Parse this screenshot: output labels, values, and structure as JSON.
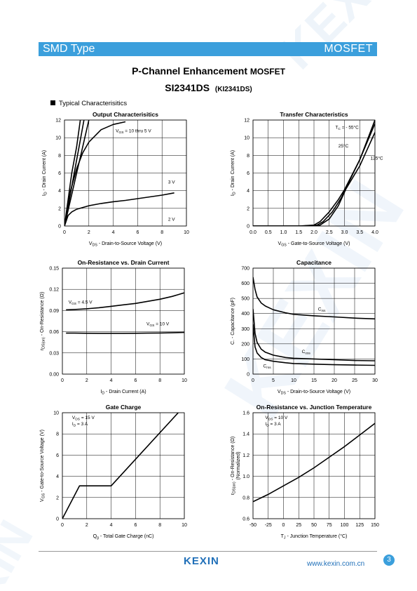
{
  "header": {
    "left": "SMD Type",
    "right": "MOSFET"
  },
  "title": {
    "main": "P-Channel Enhancement ",
    "suffix": "MOSFET",
    "part": "SI2341DS",
    "alt": "(KI2341DS)"
  },
  "section_label": "Typical  Characterisitics",
  "footer": {
    "logo": "KEXIN",
    "url": "www.kexin.com.cn",
    "page": "3"
  },
  "colors": {
    "accent": "#3b9fdc",
    "logo": "#1f6fb8"
  },
  "chart_data": [
    {
      "id": "c1",
      "type": "line",
      "title": "Output Characterisitics",
      "xlabel": [
        "V",
        "DS",
        " -  Drain-to-Source Voltage (V)"
      ],
      "ylabel": [
        "I",
        "D",
        " -  Drain Current (A)"
      ],
      "xlim": [
        0,
        10
      ],
      "ylim": [
        0,
        12
      ],
      "xticks": [
        "0",
        "2",
        "4",
        "6",
        "8",
        "10"
      ],
      "yticks": [
        "0",
        "2",
        "4",
        "6",
        "8",
        "10",
        "12"
      ],
      "series": [
        {
          "x": [
            0,
            0.3,
            0.6,
            1,
            1.3
          ],
          "y": [
            0,
            3,
            6,
            9,
            12
          ]
        },
        {
          "x": [
            0,
            0.4,
            0.8,
            1.2,
            1.6
          ],
          "y": [
            0,
            3,
            6,
            9,
            12
          ]
        },
        {
          "x": [
            0,
            0.5,
            1,
            1.5,
            2
          ],
          "y": [
            0,
            3,
            6,
            9,
            12
          ]
        },
        {
          "x": [
            0,
            0.5,
            1,
            1.5,
            2,
            3,
            4,
            5
          ],
          "y": [
            0,
            4,
            6.5,
            8.3,
            9.5,
            10.9,
            11.5,
            11.8
          ]
        },
        {
          "x": [
            0,
            0.3,
            0.6,
            1,
            1.5,
            2,
            3,
            4,
            5,
            6,
            7,
            8,
            9
          ],
          "y": [
            0,
            1.2,
            1.6,
            1.9,
            2.1,
            2.3,
            2.55,
            2.75,
            2.9,
            3.1,
            3.3,
            3.5,
            3.75
          ]
        }
      ],
      "labels": [
        {
          "text": "V",
          "sub": "GS",
          "rest": " = 10 thru 5 V",
          "x": 4.2,
          "y": 10.6
        },
        {
          "text": "3 V",
          "x": 8.5,
          "y": 4.8
        },
        {
          "text": "2 V",
          "x": 8.5,
          "y": 0.6
        }
      ]
    },
    {
      "id": "c2",
      "type": "line",
      "title": "Transfer Characteristics",
      "xlabel": [
        "V",
        "GS",
        " -  Gate-to-Source Voltage (V)"
      ],
      "ylabel": [
        "I",
        "D",
        " -  Drain Current (A)"
      ],
      "xlim": [
        0,
        4
      ],
      "ylim": [
        0,
        12
      ],
      "xticks": [
        "0.0",
        "0.5",
        "1.0",
        "1.5",
        "2.0",
        "2.5",
        "3.0",
        "3.5",
        "4.0"
      ],
      "yticks": [
        "0",
        "2",
        "4",
        "6",
        "8",
        "10",
        "12"
      ],
      "series": [
        {
          "x": [
            0,
            1.5,
            2,
            2.2,
            2.5,
            2.8,
            3,
            3.5,
            4
          ],
          "y": [
            0,
            0,
            0.1,
            0.5,
            1.6,
            3,
            4.1,
            7.5,
            12
          ]
        },
        {
          "x": [
            0,
            1.6,
            2.1,
            2.3,
            2.6,
            2.9,
            3.05,
            3.5,
            4
          ],
          "y": [
            0,
            0,
            0.1,
            0.5,
            1.6,
            3.2,
            4.3,
            7.5,
            11.6
          ]
        },
        {
          "x": [
            0,
            1.7,
            2.2,
            2.5,
            2.8,
            3.05,
            3.5,
            4
          ],
          "y": [
            0,
            0,
            0.1,
            0.8,
            2.3,
            4.2,
            6.8,
            10.6
          ]
        }
      ],
      "labels": [
        {
          "text": "T",
          "sub": "C",
          "rest": " = - 55°C",
          "x": 2.7,
          "y": 11
        },
        {
          "text": "25°C",
          "x": 2.8,
          "y": 8.9
        },
        {
          "text": "125°C",
          "x": 3.85,
          "y": 7.5
        }
      ]
    },
    {
      "id": "c3",
      "type": "line",
      "title": "On-Resistance vs. Drain Current",
      "xlabel": [
        "I",
        "D",
        " -  Drain Current (A)"
      ],
      "ylabel": [
        "r",
        "DS(on)",
        " -  On-Resistance (Ω)"
      ],
      "xlim": [
        0,
        10
      ],
      "ylim": [
        0,
        0.15
      ],
      "xticks": [
        "0",
        "2",
        "4",
        "6",
        "8",
        "10"
      ],
      "yticks": [
        "0.00",
        "0.03",
        "0.06",
        "0.09",
        "0.12",
        "0.15"
      ],
      "series": [
        {
          "x": [
            0.3,
            1,
            2,
            3,
            4,
            5,
            6,
            7,
            8,
            9,
            10
          ],
          "y": [
            0.091,
            0.0915,
            0.0925,
            0.094,
            0.096,
            0.098,
            0.1,
            0.103,
            0.106,
            0.11,
            0.115
          ]
        },
        {
          "x": [
            0.3,
            1,
            2,
            3,
            4,
            5,
            6,
            7,
            8,
            9,
            10
          ],
          "y": [
            0.058,
            0.058,
            0.0578,
            0.0577,
            0.0577,
            0.0577,
            0.0578,
            0.058,
            0.0582,
            0.0585,
            0.059
          ]
        }
      ],
      "labels": [
        {
          "text": "V",
          "sub": "GS",
          "rest": " = 4.5 V",
          "x": 0.5,
          "y": 0.1
        },
        {
          "text": "V",
          "sub": "GS",
          "rest": " = 10 V",
          "x": 6.9,
          "y": 0.069
        }
      ]
    },
    {
      "id": "c4",
      "type": "line",
      "title": "Capacitance",
      "xlabel": [
        "V",
        "DS",
        " -  Drain-to-Source Voltage (V)"
      ],
      "ylabel": [
        "C",
        "",
        ". -  Capacitance (pF)"
      ],
      "xlim": [
        0,
        30
      ],
      "ylim": [
        0,
        700
      ],
      "xticks": [
        "0",
        "5",
        "10",
        "15",
        "20",
        "25",
        "30"
      ],
      "yticks": [
        "0",
        "100",
        "200",
        "300",
        "400",
        "500",
        "600",
        "700"
      ],
      "series": [
        {
          "x": [
            0,
            0.5,
            1,
            2,
            3,
            5,
            8,
            10,
            15,
            20,
            25,
            30
          ],
          "y": [
            640,
            560,
            510,
            470,
            450,
            425,
            405,
            395,
            385,
            378,
            370,
            365
          ]
        },
        {
          "x": [
            0,
            0.5,
            1,
            2,
            3,
            5,
            8,
            10,
            15,
            20,
            25,
            30
          ],
          "y": [
            430,
            270,
            210,
            165,
            145,
            125,
            110,
            105,
            100,
            95,
            90,
            88
          ]
        },
        {
          "x": [
            0,
            0.5,
            1,
            2,
            3,
            5,
            8,
            10,
            15,
            20,
            25,
            30
          ],
          "y": [
            330,
            180,
            140,
            110,
            95,
            85,
            75,
            70,
            66,
            62,
            60,
            58
          ]
        }
      ],
      "labels": [
        {
          "text": "C",
          "sub": "iss",
          "rest": "",
          "x": 16,
          "y": 420
        },
        {
          "text": "C",
          "sub": "oss",
          "rest": "",
          "x": 12,
          "y": 140
        },
        {
          "text": "C",
          "sub": "rss",
          "rest": "",
          "x": 2.5,
          "y": 45
        }
      ]
    },
    {
      "id": "c5",
      "type": "line",
      "title": "Gate Charge",
      "xlabel": [
        "Q",
        "g",
        " -  Total Gate Charge (nC)"
      ],
      "ylabel": [
        "V",
        "GS",
        " -  Gate-to-Source Voltage (V)"
      ],
      "xlim": [
        0,
        10
      ],
      "ylim": [
        0,
        10
      ],
      "xticks": [
        "0",
        "2",
        "4",
        "6",
        "8",
        "10"
      ],
      "yticks": [
        "0",
        "2",
        "4",
        "6",
        "8",
        "10"
      ],
      "series": [
        {
          "x": [
            0,
            1.4,
            4,
            9.5
          ],
          "y": [
            0,
            3.1,
            3.1,
            10
          ]
        }
      ],
      "labels": [
        {
          "text": "V",
          "sub": "DS",
          "rest": " = 15 V",
          "x": 0.8,
          "y": 9.4
        },
        {
          "text": "I",
          "sub": "D",
          "rest": " = 3 A",
          "x": 0.8,
          "y": 8.8
        }
      ]
    },
    {
      "id": "c6",
      "type": "line",
      "title": "On-Resistance vs. Junction Temperature",
      "xlabel": [
        "T",
        "J",
        " - Junction Temperature (°C)"
      ],
      "ylabel": [
        "r",
        "DS(on)",
        " -  On-Resistance (Ω)",
        "(Normalized)"
      ],
      "xlim": [
        -50,
        150
      ],
      "ylim": [
        0.6,
        1.6
      ],
      "xticks": [
        "-50",
        "-25",
        "0",
        "25",
        "50",
        "75",
        "100",
        "125",
        "150"
      ],
      "yticks": [
        "0.6",
        "0.8",
        "1.0",
        "1.2",
        "1.4",
        "1.6"
      ],
      "series": [
        {
          "x": [
            -50,
            -25,
            0,
            25,
            50,
            75,
            100,
            125,
            150
          ],
          "y": [
            0.76,
            0.83,
            0.91,
            0.99,
            1.08,
            1.18,
            1.28,
            1.39,
            1.5
          ]
        }
      ],
      "labels": [
        {
          "text": "V",
          "sub": "DS",
          "rest": " = 10 V",
          "x": -30,
          "y": 1.54
        },
        {
          "text": "I",
          "sub": "D",
          "rest": " = 3 A",
          "x": -30,
          "y": 1.48
        }
      ]
    }
  ]
}
